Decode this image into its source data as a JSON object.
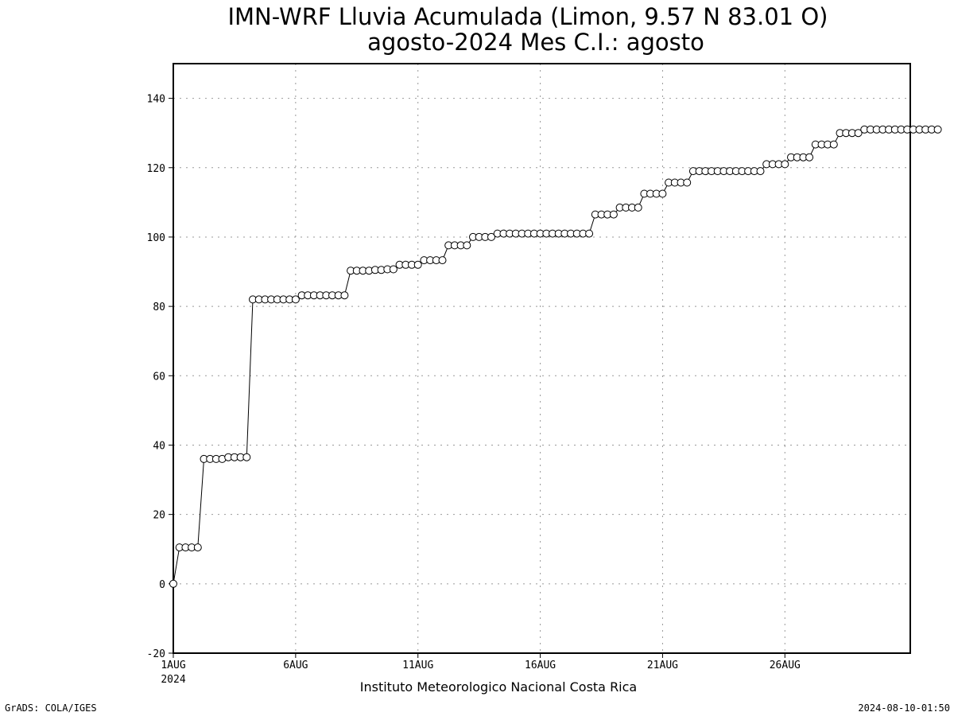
{
  "chart_data": {
    "type": "line",
    "title": "IMN-WRF  Lluvia Acumulada (Limon, 9.57  N 83.01  O)",
    "subtitle": "agosto-2024 Mes C.I.: agosto",
    "xlabel": "Instituto Meteorologico Nacional Costa Rica",
    "ylabel": "",
    "ylim": [
      -20,
      150
    ],
    "y_ticks": [
      -20,
      0,
      20,
      40,
      60,
      80,
      100,
      120,
      140
    ],
    "x_ticks": [
      {
        "day": 1,
        "label": "1AUG",
        "sublabel": "2024"
      },
      {
        "day": 6,
        "label": "6AUG"
      },
      {
        "day": 11,
        "label": "11AUG"
      },
      {
        "day": 16,
        "label": "16AUG"
      },
      {
        "day": 21,
        "label": "21AUG"
      },
      {
        "day": 26,
        "label": "26AUG"
      }
    ],
    "xlim_days": [
      1,
      31.125
    ],
    "x_step_hours": 6,
    "grid": true,
    "marker": "open-circle",
    "series": [
      {
        "values": [
          0,
          10.5,
          10.5,
          10.5,
          10.5,
          36,
          36,
          36,
          36,
          36.5,
          36.5,
          36.5,
          36.5,
          82,
          82,
          82,
          82,
          82,
          82,
          82,
          82,
          83.2,
          83.2,
          83.2,
          83.2,
          83.2,
          83.2,
          83.2,
          83.2,
          90.3,
          90.3,
          90.3,
          90.3,
          90.5,
          90.5,
          90.7,
          90.7,
          92,
          92,
          92,
          92,
          93.3,
          93.3,
          93.3,
          93.3,
          97.6,
          97.6,
          97.6,
          97.6,
          100,
          100,
          100,
          100,
          101,
          101,
          101,
          101,
          101,
          101,
          101,
          101,
          101,
          101,
          101,
          101,
          101,
          101,
          101,
          101,
          106.5,
          106.5,
          106.5,
          106.5,
          108.5,
          108.5,
          108.5,
          108.5,
          112.5,
          112.5,
          112.5,
          112.5,
          115.7,
          115.7,
          115.7,
          115.7,
          119,
          119,
          119,
          119,
          119,
          119,
          119,
          119,
          119,
          119,
          119,
          119,
          121,
          121,
          121,
          121,
          123,
          123,
          123,
          123,
          126.7,
          126.7,
          126.7,
          126.7,
          130,
          130,
          130,
          130,
          131,
          131,
          131,
          131,
          131,
          131,
          131,
          131,
          131,
          131,
          131,
          131,
          131
        ]
      }
    ]
  },
  "footer": {
    "left": "GrADS: COLA/IGES",
    "right": "2024-08-10-01:50"
  }
}
